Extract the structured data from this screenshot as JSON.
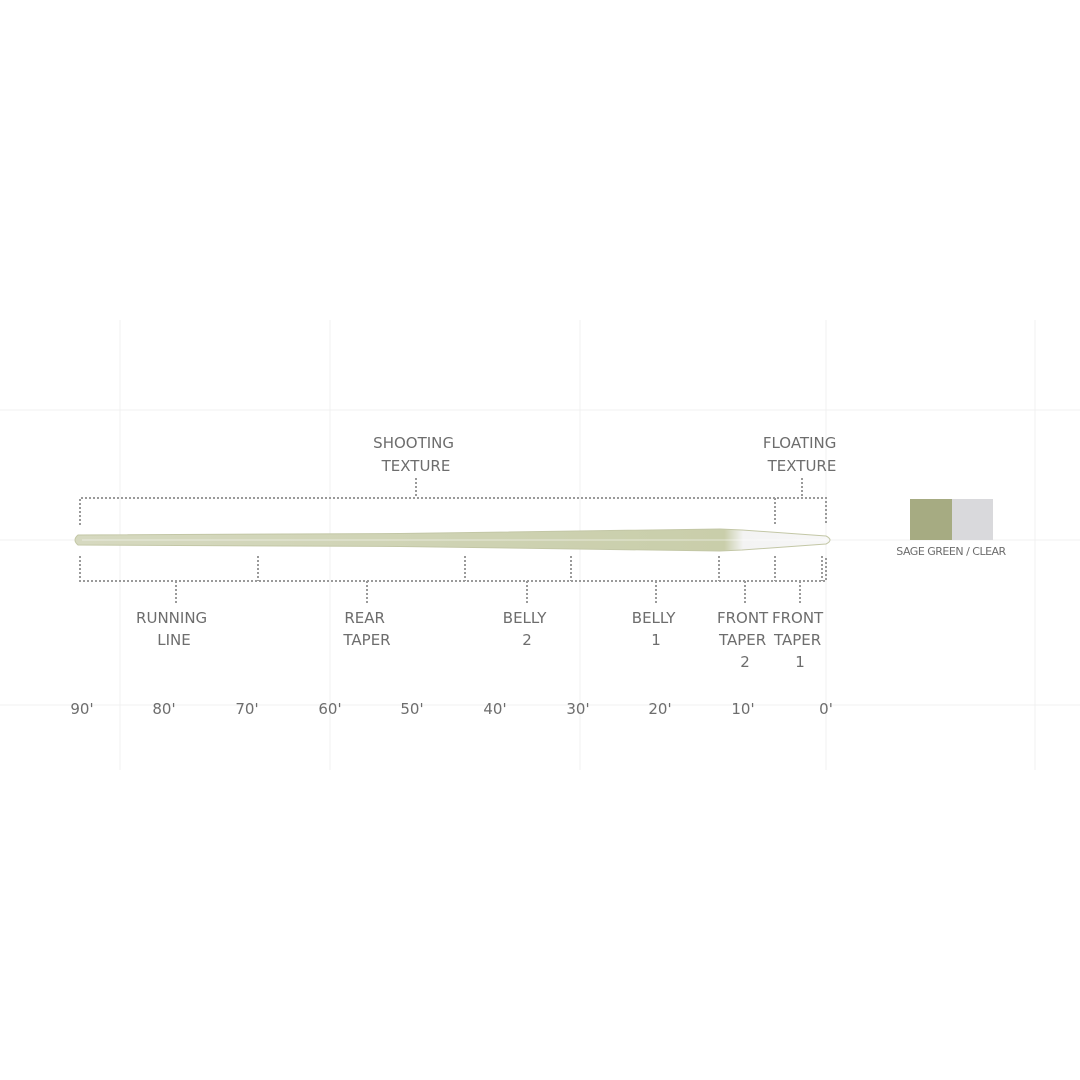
{
  "top_labels": [
    {
      "lines": [
        "SHOOTING",
        "TEXTURE"
      ]
    },
    {
      "lines": [
        "FLOATING",
        "TEXTURE"
      ]
    }
  ],
  "sections": [
    {
      "lines": [
        "RUNNING",
        "LINE"
      ]
    },
    {
      "lines": [
        "REAR",
        "TAPER"
      ]
    },
    {
      "lines": [
        "BELLY",
        "2"
      ]
    },
    {
      "lines": [
        "BELLY",
        "1"
      ]
    },
    {
      "lines": [
        "FRONT",
        "TAPER",
        "2"
      ]
    },
    {
      "lines": [
        "FRONT",
        "TAPER",
        "1"
      ]
    }
  ],
  "axis": [
    "90'",
    "80'",
    "70'",
    "60'",
    "50'",
    "40'",
    "30'",
    "20'",
    "10'",
    "0'"
  ],
  "legend": {
    "label": "SAGE GREEN / CLEAR",
    "colors": {
      "sage_green": "#a6ab82",
      "clear": "#d9d9dc"
    }
  },
  "colors": {
    "line_green": "#d3d6bb",
    "line_clear": "#f2f2f2",
    "text": "#6d6d6d",
    "dots": "#9a9a9a"
  }
}
